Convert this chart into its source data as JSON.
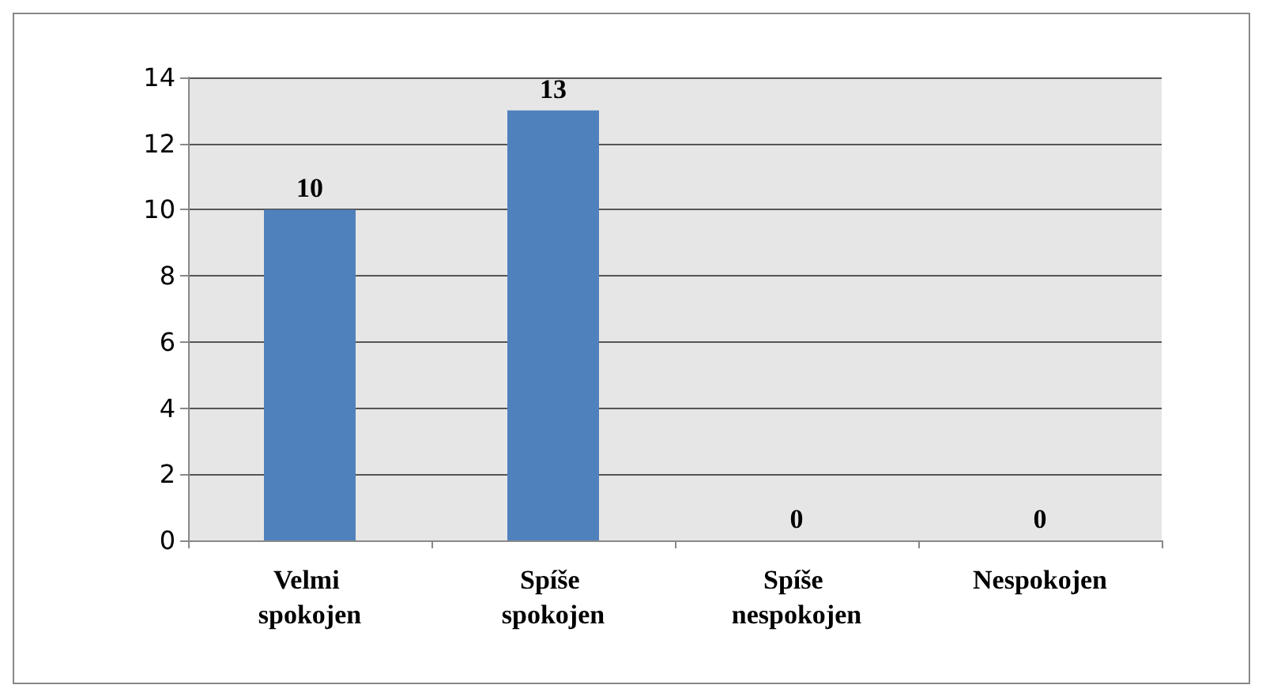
{
  "chart_data": {
    "type": "bar",
    "categories": [
      "Velmi spokojen",
      "Spíše spokojen",
      "Spíše nespokojen",
      "Nespokojen"
    ],
    "values": [
      10,
      13,
      0,
      0
    ],
    "color": "#4f81bd",
    "ylim": [
      0,
      14
    ],
    "yticks": [
      0,
      2,
      4,
      6,
      8,
      10,
      12,
      14
    ],
    "grid": "y",
    "data_labels": true
  }
}
